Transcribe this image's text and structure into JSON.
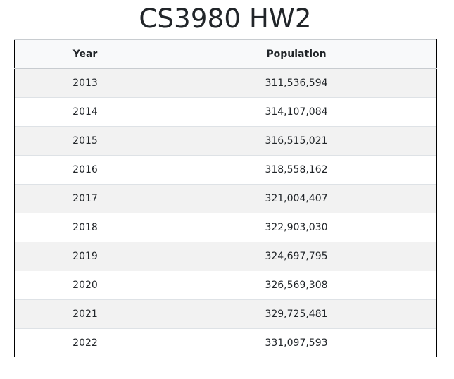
{
  "title": "CS3980 HW2",
  "table": {
    "headers": {
      "year": "Year",
      "population": "Population"
    },
    "rows": [
      {
        "year": "2013",
        "population": "311,536,594"
      },
      {
        "year": "2014",
        "population": "314,107,084"
      },
      {
        "year": "2015",
        "population": "316,515,021"
      },
      {
        "year": "2016",
        "population": "318,558,162"
      },
      {
        "year": "2017",
        "population": "321,004,407"
      },
      {
        "year": "2018",
        "population": "322,903,030"
      },
      {
        "year": "2019",
        "population": "324,697,795"
      },
      {
        "year": "2020",
        "population": "326,569,308"
      },
      {
        "year": "2021",
        "population": "329,725,481"
      },
      {
        "year": "2022",
        "population": "331,097,593"
      }
    ]
  },
  "colors": {
    "text": "#212529",
    "header_bg": "#f8f9fa",
    "stripe_bg": "#f2f2f2",
    "row_bg": "#ffffff",
    "column_border": "#000000"
  }
}
